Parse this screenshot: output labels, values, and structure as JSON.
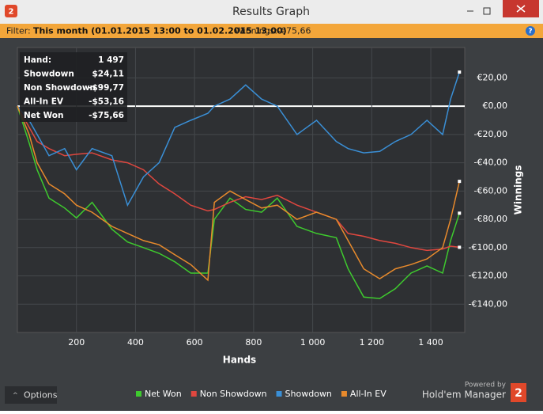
{
  "window": {
    "title": "Results Graph",
    "logo": "2",
    "filter": {
      "label": "Filter:",
      "period": "This month (01.01.2015 13:00 to 01.02.2015 13:00)",
      "winnings_label": "Winnings:",
      "winnings": "-€75,66",
      "help": "?"
    },
    "info": [
      {
        "label": "Hand:",
        "value": "1 497"
      },
      {
        "label": "Showdown",
        "value": "$24,11"
      },
      {
        "label": "Non Showdown",
        "value": "-$99,77"
      },
      {
        "label": "All-In EV",
        "value": "-$53,16"
      },
      {
        "label": "Net Won",
        "value": "-$75,66"
      }
    ],
    "options": "Options",
    "powered": "Powered by",
    "brand": "Hold'em Manager",
    "brand_logo": "2"
  },
  "chart_data": {
    "type": "line",
    "xlabel": "Hands",
    "ylabel": "Winnings",
    "x": [
      0,
      40,
      67,
      107,
      160,
      200,
      253,
      320,
      373,
      427,
      480,
      533,
      587,
      645,
      667,
      720,
      773,
      827,
      880,
      947,
      1013,
      1080,
      1120,
      1173,
      1227,
      1280,
      1333,
      1387,
      1440,
      1467,
      1497
    ],
    "series": [
      {
        "name": "Net Won",
        "color": "#3ecb2e",
        "values": [
          0,
          -26,
          -45,
          -65,
          -72,
          -79,
          -68,
          -87,
          -96,
          -100,
          -104,
          -110,
          -118,
          -118,
          -80,
          -65,
          -73,
          -75,
          -65,
          -85,
          -90,
          -93,
          -115,
          -135,
          -136,
          -129,
          -118,
          -113,
          -118,
          -95,
          -75.66
        ]
      },
      {
        "name": "Non Showdown",
        "color": "#e0473f",
        "values": [
          0,
          -15,
          -25,
          -30,
          -35,
          -34,
          -33,
          -38,
          -40,
          -45,
          -55,
          -62,
          -70,
          -74,
          -73,
          -68,
          -64,
          -66,
          -63,
          -70,
          -75,
          -80,
          -90,
          -92,
          -95,
          -97,
          -100,
          -102,
          -101,
          -99,
          -99.77
        ]
      },
      {
        "name": "Showdown",
        "color": "#3a8fd6",
        "values": [
          0,
          -10,
          -20,
          -35,
          -30,
          -45,
          -30,
          -35,
          -70,
          -50,
          -40,
          -15,
          -10,
          -5,
          0,
          5,
          15,
          5,
          0,
          -20,
          -10,
          -25,
          -30,
          -33,
          -32,
          -25,
          -20,
          -10,
          -20,
          5,
          24.11
        ]
      },
      {
        "name": "All-In EV",
        "color": "#e88a2c",
        "values": [
          0,
          -20,
          -40,
          -55,
          -62,
          -70,
          -75,
          -85,
          -90,
          -95,
          -98,
          -105,
          -112,
          -123,
          -68,
          -60,
          -66,
          -72,
          -70,
          -80,
          -75,
          -80,
          -95,
          -115,
          -122,
          -115,
          -112,
          -108,
          -100,
          -80,
          -53.16
        ]
      }
    ],
    "xlim": [
      0,
      1515
    ],
    "ylim": [
      -160,
      41.5
    ],
    "xticks": [
      200,
      400,
      600,
      800,
      {
        "value": 1000,
        "label": "1 000"
      },
      {
        "value": 1200,
        "label": "1 200"
      },
      {
        "value": 1400,
        "label": "1 400"
      }
    ],
    "yticks": [
      {
        "value": 20,
        "label": "€20,00"
      },
      {
        "value": 0,
        "label": "€0,00"
      },
      {
        "value": -20,
        "label": "-€20,00"
      },
      {
        "value": -40,
        "label": "-€40,00"
      },
      {
        "value": -60,
        "label": "-€60,00"
      },
      {
        "value": -80,
        "label": "-€80,00"
      },
      {
        "value": -100,
        "label": "-€100,00"
      },
      {
        "value": -120,
        "label": "-€120,00"
      },
      {
        "value": -140,
        "label": "-€140,00"
      }
    ],
    "grid": true,
    "legend": "bottom"
  }
}
